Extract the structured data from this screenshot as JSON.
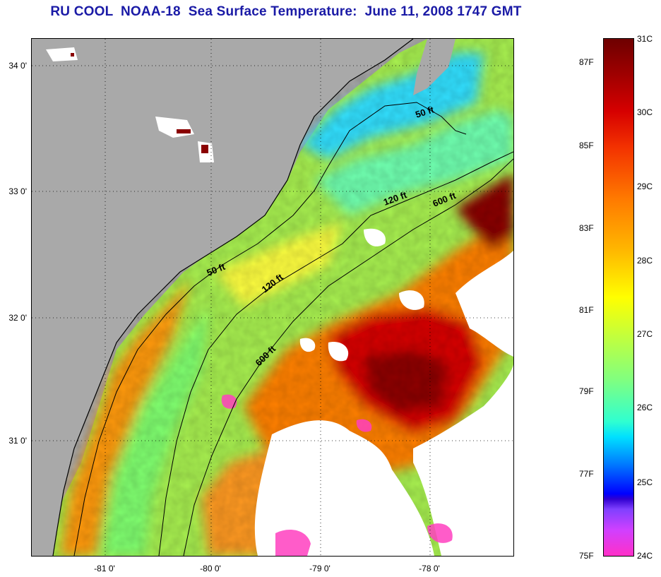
{
  "title": "RU COOL  NOAA-18  Sea Surface Temperature:  June 11, 2008 1747 GMT",
  "map": {
    "lat_labels": [
      "34 0'",
      "33 0'",
      "32 0'",
      "31 0'"
    ],
    "lon_labels": [
      "-81 0'",
      "-80 0'",
      "-79 0'",
      "-78 0'"
    ],
    "contours": [
      {
        "name": "50 ft",
        "label": "50 ft"
      },
      {
        "name": "120 ft",
        "label": "120 ft"
      },
      {
        "name": "600 ft",
        "label": "600 ft"
      }
    ],
    "contour_labels_extra": [
      "50 ft",
      "120 ft",
      "600 ft"
    ],
    "colors": {
      "land": "#a9a9a9",
      "cloud": "#ffffff",
      "contour": "#000000"
    }
  },
  "colorbar": {
    "fahrenheit_labels": [
      "87F",
      "85F",
      "83F",
      "81F",
      "79F",
      "77F",
      "75F"
    ],
    "celsius_labels": [
      "31C",
      "30C",
      "29C",
      "28C",
      "27C",
      "26C",
      "25C",
      "24C"
    ]
  }
}
